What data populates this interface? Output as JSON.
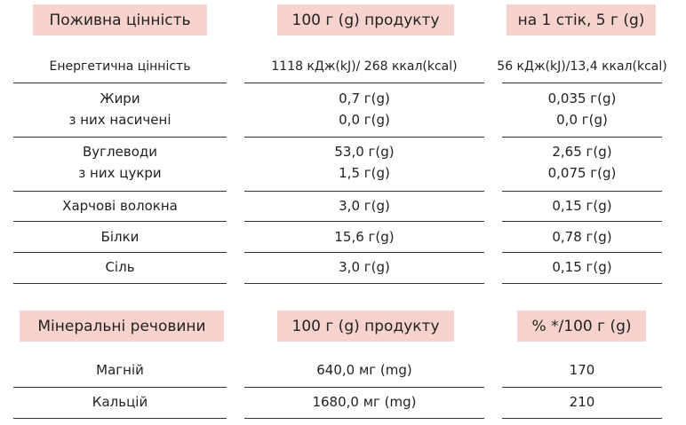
{
  "tables": [
    {
      "headers": [
        "Поживна цінність",
        "100 г (g) продукту",
        "на 1 стік, 5 г (g)"
      ],
      "rows": [
        [
          [
            "Енергетична цінність"
          ],
          [
            "1118 кДж(kJ)/ 268 ккал(kcal)"
          ],
          [
            "56 кДж(kJ)/13,4 ккал(kcal)"
          ]
        ],
        [
          [
            "Жири",
            "з них насичені"
          ],
          [
            "0,7 г(g)",
            "0,0 г(g)"
          ],
          [
            "0,035 г(g)",
            "0,0 г(g)"
          ]
        ],
        [
          [
            "Вуглеводи",
            "з них цукри"
          ],
          [
            "53,0 г(g)",
            "1,5 г(g)"
          ],
          [
            "2,65 г(g)",
            "0,075 г(g)"
          ]
        ],
        [
          [
            "Харчові волокна"
          ],
          [
            "3,0 г(g)"
          ],
          [
            "0,15 г(g)"
          ]
        ],
        [
          [
            "Білки"
          ],
          [
            "15,6 г(g)"
          ],
          [
            "0,78 г(g)"
          ]
        ],
        [
          [
            "Сіль"
          ],
          [
            "3,0 г(g)"
          ],
          [
            "0,15 г(g)"
          ]
        ]
      ]
    },
    {
      "headers": [
        "Мінеральні речовини",
        "100 г (g) продукту",
        "% */100 г (g)"
      ],
      "rows": [
        [
          [
            "Магній"
          ],
          [
            "640,0 мг (mg)"
          ],
          [
            "170"
          ]
        ],
        [
          [
            "Кальцій"
          ],
          [
            "1680,0 мг (mg)"
          ],
          [
            "210"
          ]
        ]
      ]
    }
  ]
}
